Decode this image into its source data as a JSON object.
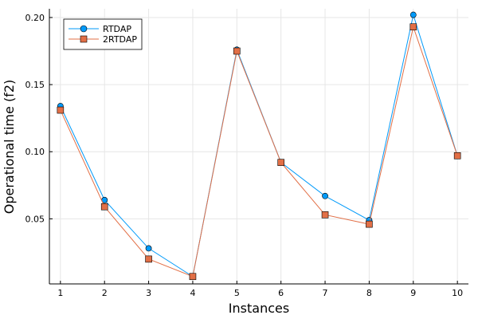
{
  "chart_data": {
    "type": "line",
    "xlabel": "Instances",
    "ylabel": "Operational time (f2)",
    "x": [
      1,
      2,
      3,
      4,
      5,
      6,
      7,
      8,
      9,
      10
    ],
    "x_ticks": [
      "1",
      "2",
      "3",
      "4",
      "5",
      "6",
      "7",
      "8",
      "9",
      "10"
    ],
    "y_ticks": [
      "0.05",
      "0.10",
      "0.15",
      "0.20"
    ],
    "xlim": [
      0.75,
      10.25
    ],
    "ylim": [
      0.0015,
      0.2065
    ],
    "grid": true,
    "legend_position": "top-left",
    "series": [
      {
        "name": "RTDAP",
        "marker": "circle",
        "color": "#009AFA",
        "values": [
          0.134,
          0.064,
          0.028,
          0.007,
          0.176,
          0.092,
          0.067,
          0.049,
          0.202,
          0.097
        ]
      },
      {
        "name": "2RTDAP",
        "marker": "square",
        "color": "#E26F46",
        "values": [
          0.131,
          0.059,
          0.02,
          0.007,
          0.175,
          0.092,
          0.053,
          0.046,
          0.193,
          0.097
        ]
      }
    ]
  }
}
